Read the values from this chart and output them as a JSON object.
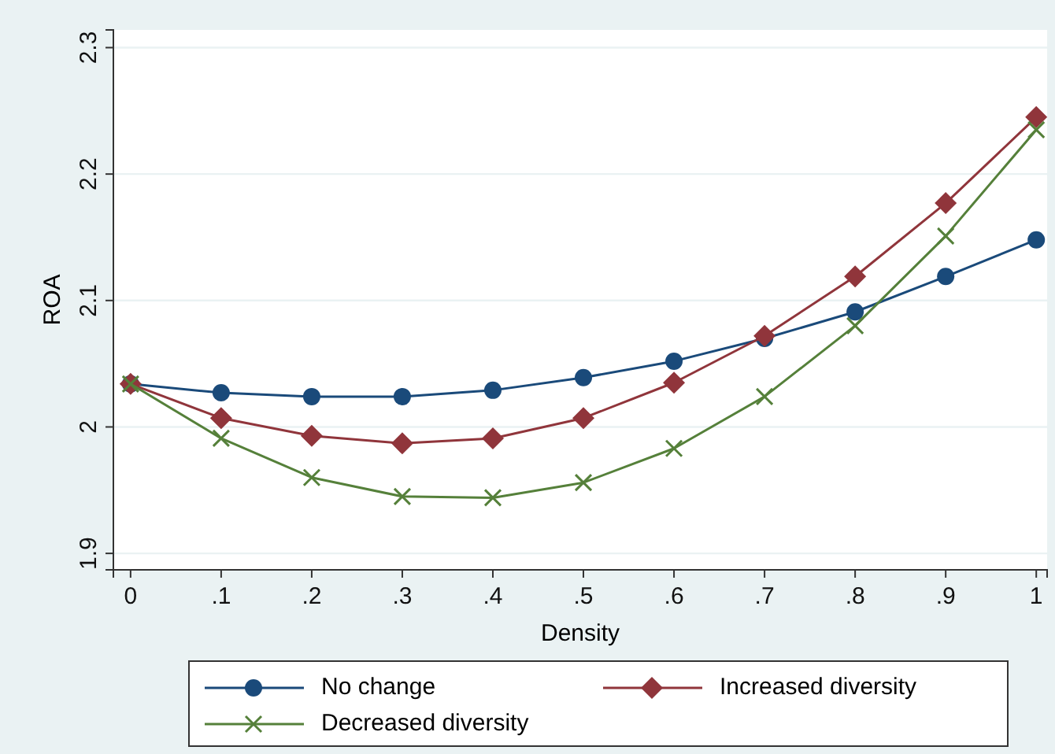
{
  "chart_data": {
    "type": "line",
    "xlabel": "Density",
    "ylabel": "ROA",
    "x": [
      0,
      0.1,
      0.2,
      0.3,
      0.4,
      0.5,
      0.6,
      0.7,
      0.8,
      0.9,
      1
    ],
    "xlim": [
      -0.019,
      1.012
    ],
    "ylim": [
      1.887,
      2.314
    ],
    "xticks": [
      {
        "value": 0,
        "label": "0"
      },
      {
        "value": 0.1,
        "label": ".1"
      },
      {
        "value": 0.2,
        "label": ".2"
      },
      {
        "value": 0.3,
        "label": ".3"
      },
      {
        "value": 0.4,
        "label": ".4"
      },
      {
        "value": 0.5,
        "label": ".5"
      },
      {
        "value": 0.6,
        "label": ".6"
      },
      {
        "value": 0.7,
        "label": ".7"
      },
      {
        "value": 0.8,
        "label": ".8"
      },
      {
        "value": 0.9,
        "label": ".9"
      },
      {
        "value": 1,
        "label": "1"
      }
    ],
    "yticks": [
      1.9,
      2,
      2.1,
      2.2,
      2.3
    ],
    "grid": "y",
    "legend": "bottom",
    "line_style": "solid",
    "series": [
      {
        "name": "No change",
        "color": "#1a4a7a",
        "marker": "circle",
        "values": [
          2.034,
          2.027,
          2.024,
          2.024,
          2.029,
          2.039,
          2.052,
          2.07,
          2.091,
          2.119,
          2.148
        ]
      },
      {
        "name": "Increased diversity",
        "color": "#90353b",
        "marker": "diamond",
        "values": [
          2.034,
          2.007,
          1.993,
          1.987,
          1.991,
          2.007,
          2.035,
          2.072,
          2.119,
          2.177,
          2.245
        ]
      },
      {
        "name": "Decreased diversity",
        "color": "#55803a",
        "marker": "cross",
        "values": [
          2.034,
          1.991,
          1.96,
          1.945,
          1.944,
          1.956,
          1.983,
          2.024,
          2.08,
          2.151,
          2.235
        ]
      }
    ]
  }
}
